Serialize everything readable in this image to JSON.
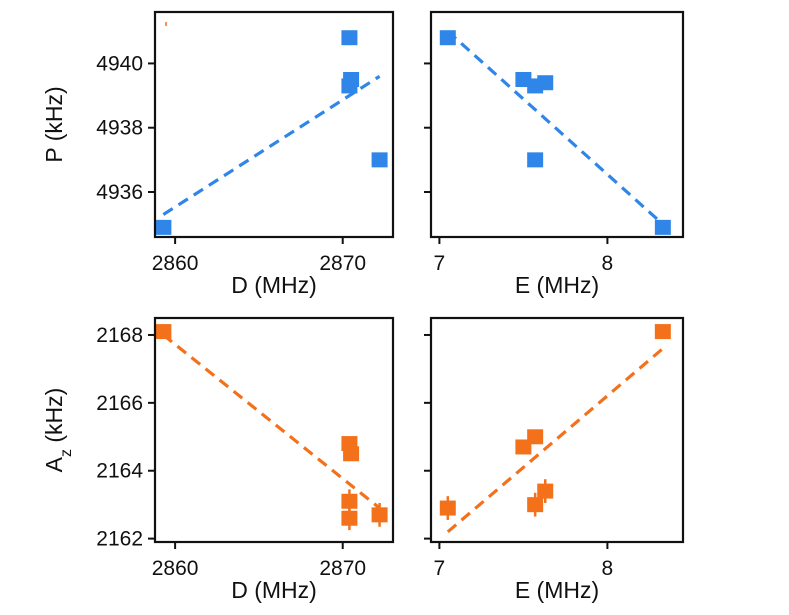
{
  "chart_data": [
    {
      "type": "scatter",
      "panel": "top-left",
      "xlabel": "D (MHz)",
      "ylabel": "P (kHz)",
      "xlim": [
        2858.8,
        2873.0
      ],
      "ylim": [
        4934.6,
        4941.6
      ],
      "xticks": [
        2860,
        2870
      ],
      "yticks": [
        4936,
        4938,
        4940
      ],
      "show_ylabels": true,
      "color": "#2f86e8",
      "points": [
        {
          "x": 2859.3,
          "y": 4934.9
        },
        {
          "x": 2870.4,
          "y": 4940.8
        },
        {
          "x": 2870.5,
          "y": 4939.5
        },
        {
          "x": 2870.4,
          "y": 4939.3
        },
        {
          "x": 2872.2,
          "y": 4937.0
        }
      ],
      "fit": {
        "x": [
          2859.3,
          2872.2
        ],
        "y": [
          4935.3,
          4939.6
        ]
      },
      "grid": false
    },
    {
      "type": "scatter",
      "panel": "top-right",
      "xlabel": "E (MHz)",
      "ylabel": "",
      "xlim": [
        6.95,
        8.45
      ],
      "ylim": [
        4934.6,
        4941.6
      ],
      "xticks": [
        7,
        8
      ],
      "yticks": [
        4936,
        4938,
        4940
      ],
      "show_ylabels": false,
      "color": "#2f86e8",
      "points": [
        {
          "x": 7.05,
          "y": 4940.8
        },
        {
          "x": 7.5,
          "y": 4939.5
        },
        {
          "x": 7.57,
          "y": 4939.3
        },
        {
          "x": 7.63,
          "y": 4939.4
        },
        {
          "x": 7.57,
          "y": 4937.0
        },
        {
          "x": 8.33,
          "y": 4934.9
        }
      ],
      "fit": {
        "x": [
          7.05,
          8.33
        ],
        "y": [
          4941.0,
          4935.0
        ]
      },
      "grid": false
    },
    {
      "type": "scatter",
      "panel": "bottom-left",
      "xlabel": "D (MHz)",
      "ylabel": "A",
      "ylabel_sub": "z",
      "ylabel_rest": " (kHz)",
      "xlim": [
        2858.8,
        2873.0
      ],
      "ylim": [
        2161.9,
        2168.5
      ],
      "xticks": [
        2860,
        2870
      ],
      "yticks": [
        2162,
        2164,
        2166,
        2168
      ],
      "show_ylabels": true,
      "color": "#f4711c",
      "points": [
        {
          "x": 2859.3,
          "y": 2168.1,
          "err": 0
        },
        {
          "x": 2870.4,
          "y": 2164.8,
          "err": 0
        },
        {
          "x": 2870.5,
          "y": 2164.5,
          "err": 0
        },
        {
          "x": 2870.4,
          "y": 2163.1,
          "err": 0.35
        },
        {
          "x": 2870.4,
          "y": 2162.6,
          "err": 0.35
        },
        {
          "x": 2872.2,
          "y": 2162.7,
          "err": 0.35
        }
      ],
      "fit": {
        "x": [
          2859.3,
          2872.2
        ],
        "y": [
          2168.0,
          2162.9
        ]
      },
      "grid": false
    },
    {
      "type": "scatter",
      "panel": "bottom-right",
      "xlabel": "E (MHz)",
      "ylabel": "",
      "xlim": [
        6.95,
        8.45
      ],
      "ylim": [
        2161.9,
        2168.5
      ],
      "xticks": [
        7,
        8
      ],
      "yticks": [
        2162,
        2164,
        2166,
        2168
      ],
      "show_ylabels": false,
      "color": "#f4711c",
      "points": [
        {
          "x": 7.05,
          "y": 2162.9,
          "err": 0.35
        },
        {
          "x": 7.5,
          "y": 2164.7,
          "err": 0
        },
        {
          "x": 7.57,
          "y": 2165.0,
          "err": 0
        },
        {
          "x": 7.57,
          "y": 2163.0,
          "err": 0.35
        },
        {
          "x": 7.63,
          "y": 2163.4,
          "err": 0.35
        },
        {
          "x": 8.33,
          "y": 2168.1,
          "err": 0
        }
      ],
      "fit": {
        "x": [
          7.05,
          8.33
        ],
        "y": [
          2162.2,
          2167.6
        ]
      },
      "grid": false
    }
  ]
}
